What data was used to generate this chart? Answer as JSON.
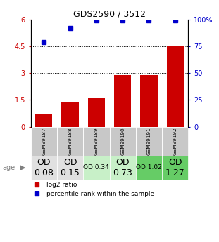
{
  "title": "GDS2590 / 3512",
  "samples": [
    "GSM99187",
    "GSM99188",
    "GSM99189",
    "GSM99190",
    "GSM99191",
    "GSM99192"
  ],
  "log2_ratio": [
    0.75,
    1.35,
    1.65,
    2.9,
    2.88,
    4.5
  ],
  "percentile_rank_pct": [
    79,
    92,
    99,
    99,
    99,
    99
  ],
  "od_values": [
    "OD\n0.08",
    "OD\n0.15",
    "OD 0.34",
    "OD\n0.73",
    "OD 1.02",
    "OD\n1.27"
  ],
  "od_fontsize": [
    9,
    9,
    6.5,
    9,
    6.5,
    9
  ],
  "od_bg_colors": [
    "#e0e0e0",
    "#e0e0e0",
    "#c8f0c8",
    "#c8f0c8",
    "#66cc66",
    "#66cc66"
  ],
  "sample_bg_color": "#c8c8c8",
  "bar_color": "#cc0000",
  "dot_color": "#0000cc",
  "left_ylim": [
    0,
    6
  ],
  "left_yticks": [
    0,
    1.5,
    3.0,
    4.5,
    6.0
  ],
  "left_yticklabels": [
    "0",
    "1.5",
    "3",
    "4.5",
    "6"
  ],
  "right_yticks": [
    0,
    25,
    50,
    75,
    100
  ],
  "right_yticklabels": [
    "0",
    "25",
    "50",
    "75",
    "100%"
  ],
  "dotted_lines": [
    1.5,
    3.0,
    4.5
  ],
  "legend_labels": [
    "log2 ratio",
    "percentile rank within the sample"
  ],
  "age_label": "age"
}
